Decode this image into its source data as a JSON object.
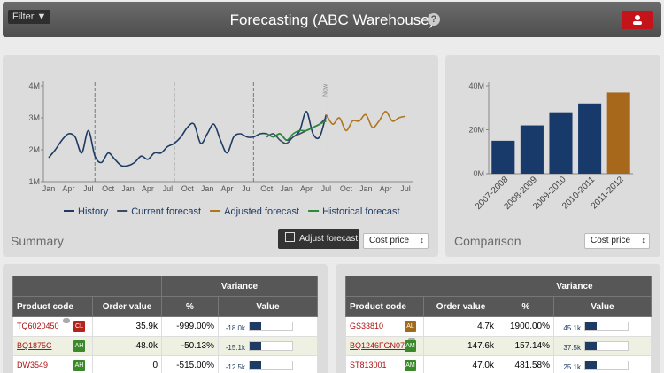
{
  "header": {
    "filter": "Filter ▼",
    "title": "Forecasting (ABC Warehouse)",
    "help": "?"
  },
  "panels": {
    "summary_label": "Summary",
    "adjust_button": "Adjust forecast",
    "summary_select": "Cost price",
    "comparison_label": "Comparison",
    "comparison_select": "Cost price"
  },
  "chart_data": [
    {
      "type": "line",
      "categories": [
        "Jan",
        null,
        null,
        "Apr",
        null,
        null,
        "Jul",
        null,
        null,
        "Oct",
        null,
        null,
        "Jan",
        null,
        null,
        "Apr",
        null,
        null,
        "Jul",
        null,
        null,
        "Oct",
        null,
        null,
        "Jan",
        null,
        null,
        "Apr",
        null,
        null,
        "Jul",
        null,
        null,
        "Oct",
        null,
        null,
        "Jan",
        null,
        null,
        "Apr",
        null,
        null,
        "Jul",
        null,
        null,
        "Oct",
        null,
        null,
        "Jan",
        null,
        null,
        "Apr",
        null,
        null,
        "Jul"
      ],
      "ylim": [
        1,
        4
      ],
      "yticks": [
        {
          "value": 1,
          "label": "1M"
        },
        {
          "value": 2,
          "label": "2M"
        },
        {
          "value": 3,
          "label": "3M"
        },
        {
          "value": 4,
          "label": "4M"
        }
      ],
      "now_label": "Now",
      "series": [
        {
          "name": "History",
          "color": "#1d3b63",
          "values": [
            1.75,
            2.0,
            2.3,
            2.5,
            2.4,
            1.9,
            2.6,
            1.8,
            1.6,
            1.9,
            1.7,
            1.5,
            1.5,
            1.6,
            1.8,
            1.7,
            1.9,
            1.9,
            2.1,
            2.2,
            2.4,
            2.7,
            2.8,
            2.2,
            2.5,
            2.8,
            2.3,
            1.9,
            2.4,
            2.5,
            2.4,
            2.4,
            2.5,
            2.5,
            2.4,
            2.5,
            2.3,
            2.4,
            2.6,
            3.2,
            2.5,
            2.4,
            3.1,
            null,
            null,
            null,
            null,
            null,
            null,
            null,
            null,
            null,
            null,
            null,
            null
          ]
        },
        {
          "name": "Current forecast",
          "color": "#3b4d63",
          "values": [
            null,
            null,
            null,
            null,
            null,
            null,
            null,
            null,
            null,
            null,
            null,
            null,
            null,
            null,
            null,
            null,
            null,
            null,
            null,
            null,
            null,
            null,
            null,
            null,
            null,
            null,
            null,
            null,
            null,
            null,
            null,
            null,
            null,
            2.4,
            2.5,
            2.3,
            2.2,
            2.4,
            2.5,
            2.6,
            2.7,
            2.8,
            3.0,
            null,
            null,
            null,
            null,
            null,
            null,
            null,
            null,
            null,
            null,
            null,
            null
          ]
        },
        {
          "name": "Adjusted forecast",
          "color": "#b0761e",
          "values": [
            null,
            null,
            null,
            null,
            null,
            null,
            null,
            null,
            null,
            null,
            null,
            null,
            null,
            null,
            null,
            null,
            null,
            null,
            null,
            null,
            null,
            null,
            null,
            null,
            null,
            null,
            null,
            null,
            null,
            null,
            null,
            null,
            null,
            null,
            null,
            null,
            null,
            null,
            null,
            null,
            null,
            null,
            3.1,
            2.8,
            3.0,
            2.6,
            2.9,
            2.9,
            3.1,
            2.7,
            2.9,
            3.2,
            2.9,
            3.0,
            3.05
          ]
        },
        {
          "name": "Historical forecast",
          "color": "#2a8a3a",
          "values": [
            null,
            null,
            null,
            null,
            null,
            null,
            null,
            null,
            null,
            null,
            null,
            null,
            null,
            null,
            null,
            null,
            null,
            null,
            null,
            null,
            null,
            null,
            null,
            null,
            null,
            null,
            null,
            null,
            null,
            null,
            null,
            null,
            null,
            2.5,
            2.4,
            2.5,
            2.3,
            2.5,
            2.6,
            2.6,
            2.7,
            2.8,
            2.9,
            null,
            null,
            null,
            null,
            null,
            null,
            null,
            null,
            null,
            null,
            null,
            null
          ]
        }
      ]
    },
    {
      "type": "bar",
      "categories": [
        "2007-2008",
        "2008-2009",
        "2009-2010",
        "2010-2011",
        "2011-2012"
      ],
      "values": [
        15,
        22,
        28,
        32,
        37
      ],
      "colors": [
        "#173a6b",
        "#173a6b",
        "#173a6b",
        "#173a6b",
        "#a8681c"
      ],
      "ylim": [
        0,
        40
      ],
      "yticks": [
        {
          "value": 0,
          "label": "0M"
        },
        {
          "value": 20,
          "label": "20M"
        },
        {
          "value": 40,
          "label": "40M"
        }
      ]
    }
  ],
  "tables": [
    {
      "group_header": "Variance",
      "columns": [
        "Product code",
        "Order value",
        "%",
        "Value"
      ],
      "rows": [
        {
          "code": "TQ6020450",
          "badge": "CL",
          "badge_color": "#b3241c",
          "comment": true,
          "order_value": "35.9k",
          "percent": "-999.00%",
          "value": "-18.0k"
        },
        {
          "code": "BQ1875C",
          "badge": "AH",
          "badge_color": "#3a8a2a",
          "comment": false,
          "order_value": "48.0k",
          "percent": "-50.13%",
          "value": "-15.1k"
        },
        {
          "code": "DW3549",
          "badge": "AH",
          "badge_color": "#3a8a2a",
          "comment": false,
          "order_value": "0",
          "percent": "-515.00%",
          "value": "-12.5k"
        }
      ]
    },
    {
      "group_header": "Variance",
      "columns": [
        "Product code",
        "Order value",
        "%",
        "Value"
      ],
      "rows": [
        {
          "code": "GS33810",
          "badge": "AL",
          "badge_color": "#a06a1a",
          "comment": false,
          "order_value": "4.7k",
          "percent": "1900.00%",
          "value": "45.1k"
        },
        {
          "code": "BQ1246FGN07",
          "badge": "AM",
          "badge_color": "#3a8a2a",
          "comment": true,
          "order_value": "147.6k",
          "percent": "157.14%",
          "value": "37.5k"
        },
        {
          "code": "ST813001",
          "badge": "AM",
          "badge_color": "#3a8a2a",
          "comment": false,
          "order_value": "47.0k",
          "percent": "481.58%",
          "value": "25.1k"
        }
      ]
    }
  ]
}
